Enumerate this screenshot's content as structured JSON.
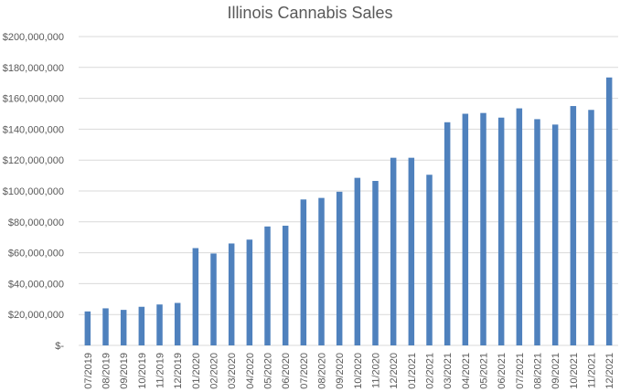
{
  "chart_data": {
    "type": "bar",
    "title": "Illinois Cannabis Sales",
    "xlabel": "",
    "ylabel": "",
    "ylim": [
      0,
      200000000
    ],
    "yticks": [
      0,
      20000000,
      40000000,
      60000000,
      80000000,
      100000000,
      120000000,
      140000000,
      160000000,
      180000000,
      200000000
    ],
    "ytick_labels": [
      "$-",
      "$20,000,000",
      "$40,000,000",
      "$60,000,000",
      "$80,000,000",
      "$100,000,000",
      "$120,000,000",
      "$140,000,000",
      "$160,000,000",
      "$180,000,000",
      "$200,000,000"
    ],
    "grid": true,
    "bar_color": "#4F81BD",
    "grid_color": "#D9D9D9",
    "categories": [
      "07/2019",
      "08/2019",
      "09/2019",
      "10/2019",
      "11/2019",
      "12/2019",
      "01/2020",
      "02/2020",
      "03/2020",
      "04/2020",
      "05/2020",
      "06/2020",
      "07/2020",
      "08/2020",
      "09/2020",
      "10/2020",
      "11/2020",
      "12/2020",
      "01/2021",
      "02/2021",
      "03/2021",
      "04/2021",
      "05/2021",
      "06/2021",
      "07/2021",
      "08/2021",
      "09/2021",
      "10/2021",
      "11/2021",
      "12/2021"
    ],
    "values": [
      22000000,
      24000000,
      23000000,
      25000000,
      26500000,
      27500000,
      63000000,
      59500000,
      66000000,
      68500000,
      77000000,
      77500000,
      94500000,
      95500000,
      99500000,
      108500000,
      106500000,
      121500000,
      121500000,
      110500000,
      144500000,
      150000000,
      150500000,
      147500000,
      153500000,
      146500000,
      143000000,
      155000000,
      152500000,
      173500000
    ]
  }
}
